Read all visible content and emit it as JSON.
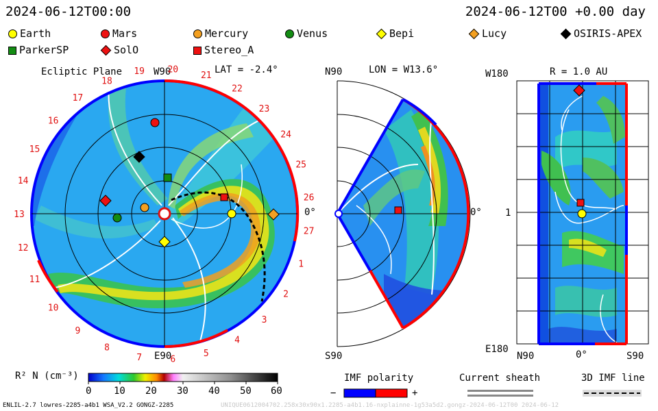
{
  "header": {
    "datetime_left": "2024-06-12T00:00",
    "datetime_right": "2024-06-12T00 +0.00 day"
  },
  "legend": [
    {
      "name": "Earth",
      "shape": "circle",
      "color": "#ffff00"
    },
    {
      "name": "Mars",
      "shape": "circle",
      "color": "#ee1111"
    },
    {
      "name": "Mercury",
      "shape": "circle",
      "color": "#f4a020"
    },
    {
      "name": "Venus",
      "shape": "circle",
      "color": "#138c13"
    },
    {
      "name": "Bepi",
      "shape": "diamond",
      "color": "#ffff00"
    },
    {
      "name": "Lucy",
      "shape": "diamond",
      "color": "#f4a020"
    },
    {
      "name": "OSIRIS-APEX",
      "shape": "diamond",
      "color": "#000000"
    },
    {
      "name": "ParkerSP",
      "shape": "square",
      "color": "#138c13"
    },
    {
      "name": "SolO",
      "shape": "diamond",
      "color": "#ee1111"
    },
    {
      "name": "Stereo_A",
      "shape": "square",
      "color": "#ee1111"
    }
  ],
  "ecliptic": {
    "title": "Ecliptic Plane",
    "lat": "LAT = -2.4°",
    "top_label": "W90",
    "bottom_label": "E90",
    "right_label": "0°",
    "rotations": [
      "19",
      "20",
      "21",
      "22",
      "23",
      "24",
      "25",
      "26",
      "27",
      "1",
      "2",
      "3",
      "4",
      "5",
      "6",
      "7",
      "8",
      "9",
      "10",
      "11",
      "12",
      "13",
      "14",
      "15",
      "16",
      "17",
      "18"
    ]
  },
  "meridional": {
    "lon": "LON = W13.6°",
    "top_label": "N90",
    "bottom_label": "S90",
    "right_label": "0°"
  },
  "rmap": {
    "title": "R = 1.0 AU",
    "top_left": "W180",
    "mid_left": "1",
    "bottom_left": "E180",
    "x_left": "N90",
    "x_mid": "0°",
    "x_right": "S90"
  },
  "colorbar": {
    "label": "R² N (cm⁻³)",
    "ticks": [
      "0",
      "10",
      "20",
      "30",
      "40",
      "50",
      "60"
    ]
  },
  "imf": {
    "title": "IMF polarity",
    "minus": "−",
    "plus": "+"
  },
  "sheath": {
    "title": "Current sheath"
  },
  "imf3d": {
    "title": "3D IMF line"
  },
  "footer": {
    "left": "ENLIL-2.7 lowres-2285-a4b1 WSA_V2.2 GONGZ-2285",
    "right": "UNIQUE0612004702.258x30x90x1.2285-a4b1.16-nxplainne-1g53a5d2.gongz-2024-06-12T00 2024-06-12"
  },
  "colors": {
    "polarity_negative": "#0000ff",
    "polarity_positive": "#ff0000"
  }
}
